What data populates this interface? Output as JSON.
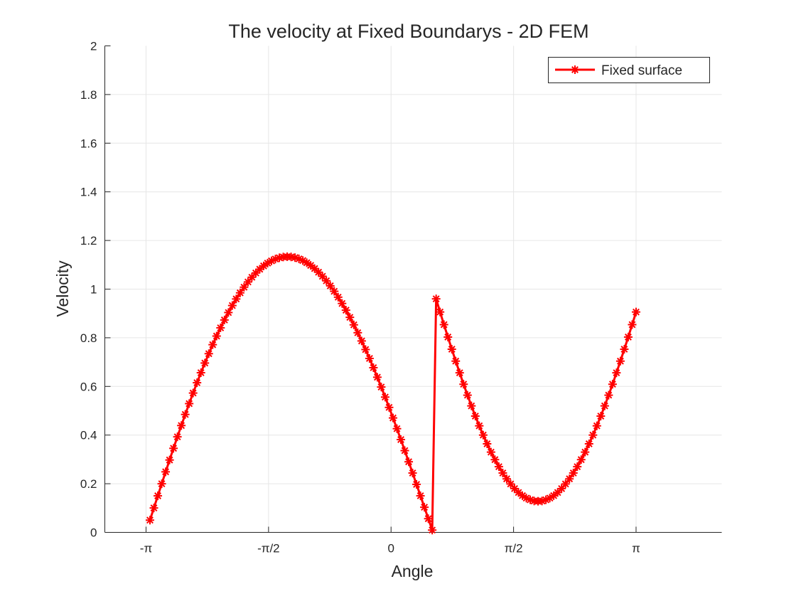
{
  "chart_data": {
    "type": "line",
    "title": "The velocity at Fixed Boundarys - 2D FEM",
    "xlabel": "Angle",
    "ylabel": "Velocity",
    "xlim": [
      -3.67,
      4.24
    ],
    "ylim": [
      0,
      2
    ],
    "x_ticks": [
      -3.1416,
      -1.5708,
      0,
      1.5708,
      3.1416
    ],
    "x_tick_labels": [
      "-π",
      "-π/2",
      "0",
      "π/2",
      "π"
    ],
    "y_ticks": [
      0,
      0.2,
      0.4,
      0.6,
      0.8,
      1,
      1.2,
      1.4,
      1.6,
      1.8,
      2
    ],
    "y_tick_labels": [
      "0",
      "0.2",
      "0.4",
      "0.6",
      "0.8",
      "1",
      "1.2",
      "1.4",
      "1.6",
      "1.8",
      "2"
    ],
    "grid": true,
    "legend_position": "top-right",
    "series": [
      {
        "name": "Fixed surface",
        "color": "#ff0000",
        "marker": "asterisk",
        "x_start": -3.0913,
        "x_end": 3.1416,
        "n_points": 125,
        "values": [
          0.0502,
          0.1003,
          0.1502,
          0.1998,
          0.2489,
          0.2975,
          0.3455,
          0.3928,
          0.4392,
          0.4848,
          0.5293,
          0.5728,
          0.6152,
          0.6563,
          0.6961,
          0.7346,
          0.7716,
          0.807,
          0.8409,
          0.8732,
          0.9037,
          0.9325,
          0.9595,
          0.9847,
          1.008,
          1.0294,
          1.0489,
          1.0664,
          1.0819,
          1.0954,
          1.1068,
          1.1162,
          1.1236,
          1.1289,
          1.1321,
          1.1333,
          1.1324,
          1.1295,
          1.1245,
          1.1175,
          1.1085,
          1.0975,
          1.0845,
          1.0696,
          1.0528,
          1.0341,
          1.0135,
          0.9911,
          0.9669,
          0.941,
          0.9134,
          0.8841,
          0.8532,
          0.8208,
          0.7869,
          0.7516,
          0.715,
          0.677,
          0.6378,
          0.5975,
          0.5561,
          0.5137,
          0.4704,
          0.4263,
          0.3815,
          0.3361,
          0.2902,
          0.2439,
          0.1972,
          0.1503,
          0.1033,
          0.0563,
          0.0094,
          0.96,
          0.906,
          0.854,
          0.803,
          0.753,
          0.704,
          0.656,
          0.609,
          0.564,
          0.52,
          0.478,
          0.438,
          0.4,
          0.364,
          0.33,
          0.299,
          0.27,
          0.244,
          0.22,
          0.199,
          0.18,
          0.164,
          0.151,
          0.141,
          0.134,
          0.129,
          0.128,
          0.129,
          0.134,
          0.141,
          0.151,
          0.164,
          0.18,
          0.199,
          0.22,
          0.244,
          0.27,
          0.299,
          0.33,
          0.364,
          0.4,
          0.438,
          0.478,
          0.52,
          0.564,
          0.609,
          0.656,
          0.704,
          0.753,
          0.803,
          0.854,
          0.906
        ]
      }
    ]
  }
}
